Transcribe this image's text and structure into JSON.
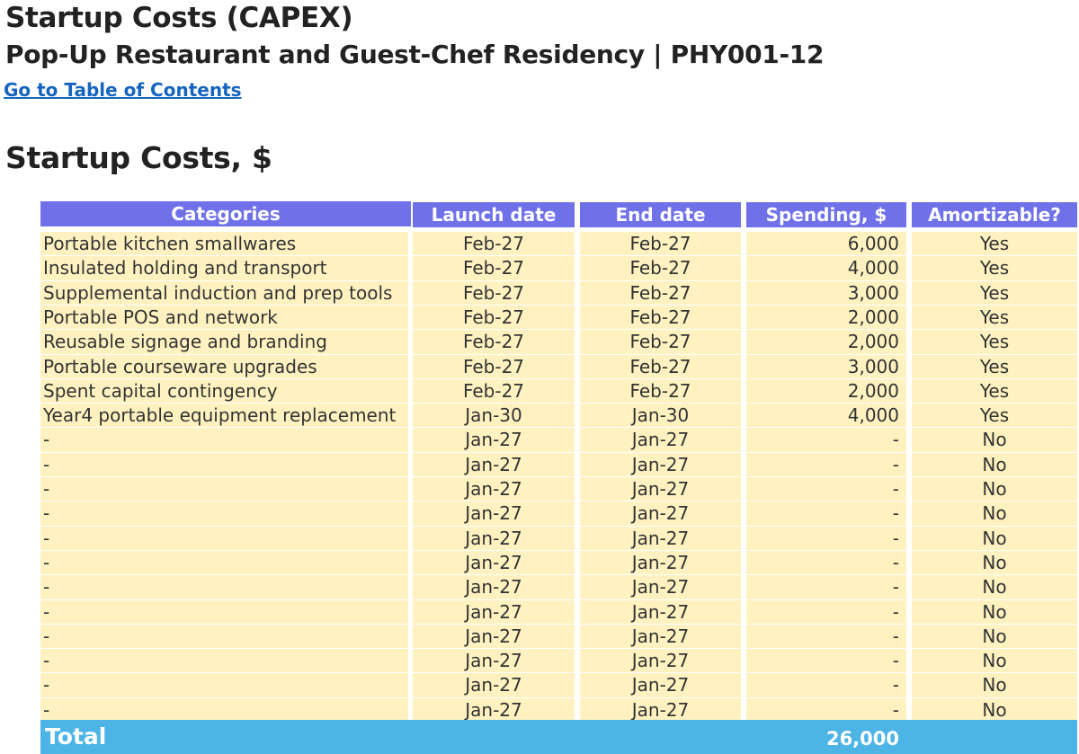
{
  "page": {
    "title": "Startup Costs (CAPEX)",
    "subtitle": "Pop-Up Restaurant and Guest-Chef Residency | PHY001-12",
    "toc_link": "Go to Table of Contents",
    "section_title": "Startup Costs, $"
  },
  "table": {
    "headers": {
      "category": "Categories",
      "launch": "Launch date",
      "end": "End date",
      "spending": "Spending, $",
      "amortizable": "Amortizable?"
    },
    "rows": [
      {
        "category": "Portable kitchen smallwares",
        "launch": "Feb-27",
        "end": "Feb-27",
        "spending": "6,000",
        "amortizable": "Yes"
      },
      {
        "category": "Insulated holding and transport",
        "launch": "Feb-27",
        "end": "Feb-27",
        "spending": "4,000",
        "amortizable": "Yes"
      },
      {
        "category": "Supplemental induction and prep tools",
        "launch": "Feb-27",
        "end": "Feb-27",
        "spending": "3,000",
        "amortizable": "Yes"
      },
      {
        "category": "Portable POS and network",
        "launch": "Feb-27",
        "end": "Feb-27",
        "spending": "2,000",
        "amortizable": "Yes"
      },
      {
        "category": "Reusable signage and branding",
        "launch": "Feb-27",
        "end": "Feb-27",
        "spending": "2,000",
        "amortizable": "Yes"
      },
      {
        "category": "Portable courseware upgrades",
        "launch": "Feb-27",
        "end": "Feb-27",
        "spending": "3,000",
        "amortizable": "Yes"
      },
      {
        "category": "Spent capital contingency",
        "launch": "Feb-27",
        "end": "Feb-27",
        "spending": "2,000",
        "amortizable": "Yes"
      },
      {
        "category": "Year4 portable equipment replacement",
        "launch": "Jan-30",
        "end": "Jan-30",
        "spending": "4,000",
        "amortizable": "Yes"
      },
      {
        "category": "-",
        "launch": "Jan-27",
        "end": "Jan-27",
        "spending": "-",
        "amortizable": "No"
      },
      {
        "category": "-",
        "launch": "Jan-27",
        "end": "Jan-27",
        "spending": "-",
        "amortizable": "No"
      },
      {
        "category": "-",
        "launch": "Jan-27",
        "end": "Jan-27",
        "spending": "-",
        "amortizable": "No"
      },
      {
        "category": "-",
        "launch": "Jan-27",
        "end": "Jan-27",
        "spending": "-",
        "amortizable": "No"
      },
      {
        "category": "-",
        "launch": "Jan-27",
        "end": "Jan-27",
        "spending": "-",
        "amortizable": "No"
      },
      {
        "category": "-",
        "launch": "Jan-27",
        "end": "Jan-27",
        "spending": "-",
        "amortizable": "No"
      },
      {
        "category": "-",
        "launch": "Jan-27",
        "end": "Jan-27",
        "spending": "-",
        "amortizable": "No"
      },
      {
        "category": "-",
        "launch": "Jan-27",
        "end": "Jan-27",
        "spending": "-",
        "amortizable": "No"
      },
      {
        "category": "-",
        "launch": "Jan-27",
        "end": "Jan-27",
        "spending": "-",
        "amortizable": "No"
      },
      {
        "category": "-",
        "launch": "Jan-27",
        "end": "Jan-27",
        "spending": "-",
        "amortizable": "No"
      },
      {
        "category": "-",
        "launch": "Jan-27",
        "end": "Jan-27",
        "spending": "-",
        "amortizable": "No"
      },
      {
        "category": "-",
        "launch": "Jan-27",
        "end": "Jan-27",
        "spending": "-",
        "amortizable": "No"
      }
    ],
    "total": {
      "label": "Total",
      "spending": "26,000"
    }
  },
  "colors": {
    "header_bg": "#7071e8",
    "row_bg": "#fff2c0",
    "total_bg": "#4db4e6",
    "link": "#1565c0"
  }
}
